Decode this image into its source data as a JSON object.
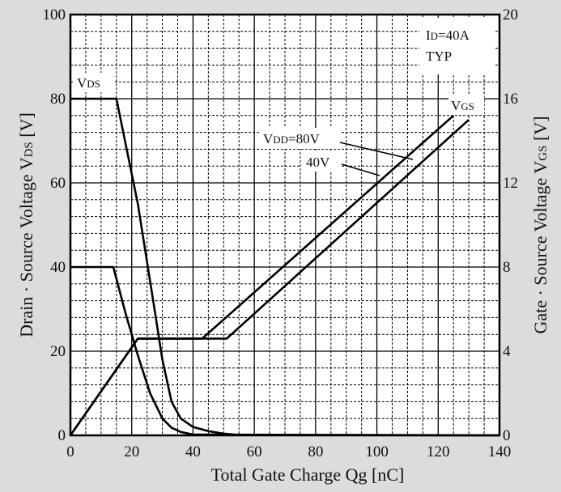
{
  "chart_data": {
    "type": "line",
    "title": "",
    "xlabel": "Total Gate Charge  Qg [nC]",
    "ylabel_left": "Drain · Source Voltage  V",
    "ylabel_left_sub": "DS",
    "ylabel_left_unit": " [V]",
    "ylabel_right": "Gate · Source Voltage  V",
    "ylabel_right_sub": "GS",
    "ylabel_right_unit": " [V]",
    "xlim": [
      0,
      140
    ],
    "ylim_left": [
      0,
      100
    ],
    "ylim_right": [
      0,
      20
    ],
    "x_ticks": [
      "0",
      "20",
      "40",
      "60",
      "80",
      "100",
      "120",
      "140"
    ],
    "y_left_ticks": [
      "0",
      "20",
      "40",
      "60",
      "80",
      "100"
    ],
    "y_right_ticks": [
      "0",
      "4",
      "8",
      "12",
      "16",
      "20"
    ],
    "grid": true,
    "annotations": {
      "id_condition": "ID=40A",
      "id_prefix": "I",
      "id_sub": "D",
      "id_value": "=40A",
      "typ": "TYP",
      "vds_label_main": "V",
      "vds_label_sub": "DS",
      "vgs_label_main": "V",
      "vgs_label_sub": "GS",
      "vdd80_main": "V",
      "vdd80_sub": "DD",
      "vdd80_value": "=80V",
      "vdd40_value": "40V"
    },
    "series": [
      {
        "axis": "left",
        "x": [
          0,
          15,
          22,
          27,
          30,
          33,
          36,
          40,
          45,
          50,
          55,
          140
        ],
        "y": [
          80,
          80,
          55,
          32,
          18,
          8,
          4,
          2,
          1,
          0.4,
          0.1,
          0
        ]
      },
      {
        "axis": "left",
        "x": [
          0,
          14,
          18,
          22,
          26,
          30,
          33,
          36,
          40,
          140
        ],
        "y": [
          40,
          40,
          29,
          19,
          10,
          4,
          1.8,
          0.8,
          0.2,
          0
        ]
      },
      {
        "axis": "right",
        "x": [
          0,
          22,
          43,
          125
        ],
        "y": [
          0,
          4.6,
          4.6,
          15.2
        ]
      },
      {
        "axis": "right",
        "x": [
          0,
          22,
          51,
          130
        ],
        "y": [
          0,
          4.6,
          4.6,
          15.0
        ]
      }
    ]
  }
}
